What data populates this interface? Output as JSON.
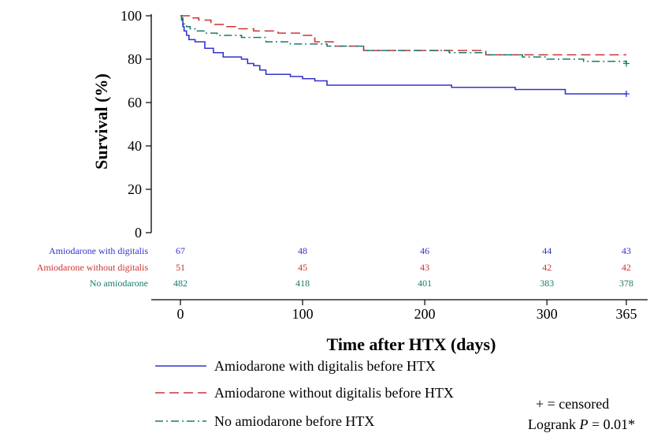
{
  "chart_data": {
    "type": "line",
    "xlabel": "Time after HTX (days)",
    "ylabel": "Survival (%)",
    "xlim": [
      0,
      365
    ],
    "ylim": [
      0,
      100
    ],
    "x_ticks": [
      0,
      100,
      200,
      300,
      365
    ],
    "y_ticks": [
      0,
      20,
      40,
      60,
      80,
      100
    ],
    "grid": false,
    "legend_position": "bottom-left",
    "series": [
      {
        "name": "Amiodarone with digitalis before HTX",
        "color": "#3333cc",
        "dash": "solid",
        "x": [
          0,
          1,
          2,
          3,
          5,
          7,
          12,
          20,
          27,
          35,
          50,
          55,
          60,
          65,
          70,
          80,
          90,
          100,
          110,
          120,
          160,
          200,
          222,
          240,
          274,
          300,
          315,
          340,
          365
        ],
        "y": [
          100,
          98,
          95,
          93,
          91,
          89,
          88,
          85,
          83,
          81,
          80,
          78,
          77,
          75,
          73,
          73,
          72,
          71,
          70,
          68,
          68,
          68,
          67,
          67,
          66,
          66,
          64,
          64,
          64
        ],
        "censor_at": [
          365
        ]
      },
      {
        "name": "Amiodarone without digitalis before HTX",
        "color": "#cc3333",
        "dash": "long",
        "x": [
          0,
          3,
          8,
          15,
          25,
          35,
          45,
          60,
          80,
          100,
          110,
          125,
          150,
          200,
          250,
          300,
          365
        ],
        "y": [
          100,
          100,
          99,
          98,
          96,
          95,
          94,
          93,
          92,
          91,
          88,
          86,
          84,
          84,
          82,
          82,
          82
        ],
        "censor_at": []
      },
      {
        "name": "No amiodarone before HTX",
        "color": "#1a7a6a",
        "dash": "dashdot",
        "x": [
          0,
          1,
          2,
          3,
          5,
          8,
          12,
          20,
          30,
          50,
          70,
          90,
          120,
          150,
          180,
          220,
          250,
          280,
          300,
          330,
          365
        ],
        "y": [
          100,
          99,
          97,
          96,
          95,
          94,
          93,
          92,
          91,
          90,
          88,
          87,
          86,
          84,
          84,
          83,
          82,
          81,
          80,
          79,
          78
        ],
        "censor_at": [
          365
        ]
      }
    ],
    "risk_table": {
      "time_points": [
        0,
        100,
        200,
        300,
        365
      ],
      "rows": [
        {
          "label": "Amiodarone with digitalis",
          "color": "#3333cc",
          "counts": [
            "67",
            "48",
            "46",
            "44",
            "43"
          ]
        },
        {
          "label": "Amiodarone without digitalis",
          "color": "#cc3333",
          "counts": [
            "51",
            "45",
            "43",
            "42",
            "42"
          ]
        },
        {
          "label": "No amiodarone",
          "color": "#1a7a6a",
          "counts": [
            "482",
            "418",
            "401",
            "383",
            "378"
          ]
        }
      ]
    },
    "annotations": {
      "censored": "+ = censored",
      "logrank_prefix": "Logrank ",
      "logrank_p": "P",
      "logrank_value": " = 0.01*"
    }
  }
}
